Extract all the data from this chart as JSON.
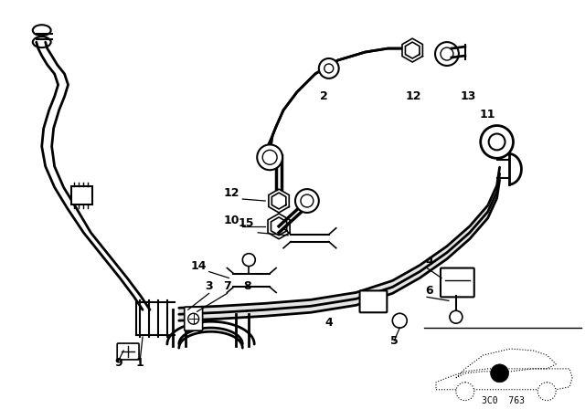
{
  "bg_color": "#ffffff",
  "line_color": "#000000",
  "fig_width": 6.4,
  "fig_height": 4.48,
  "dpi": 100,
  "diagram_number": "3C0  763"
}
